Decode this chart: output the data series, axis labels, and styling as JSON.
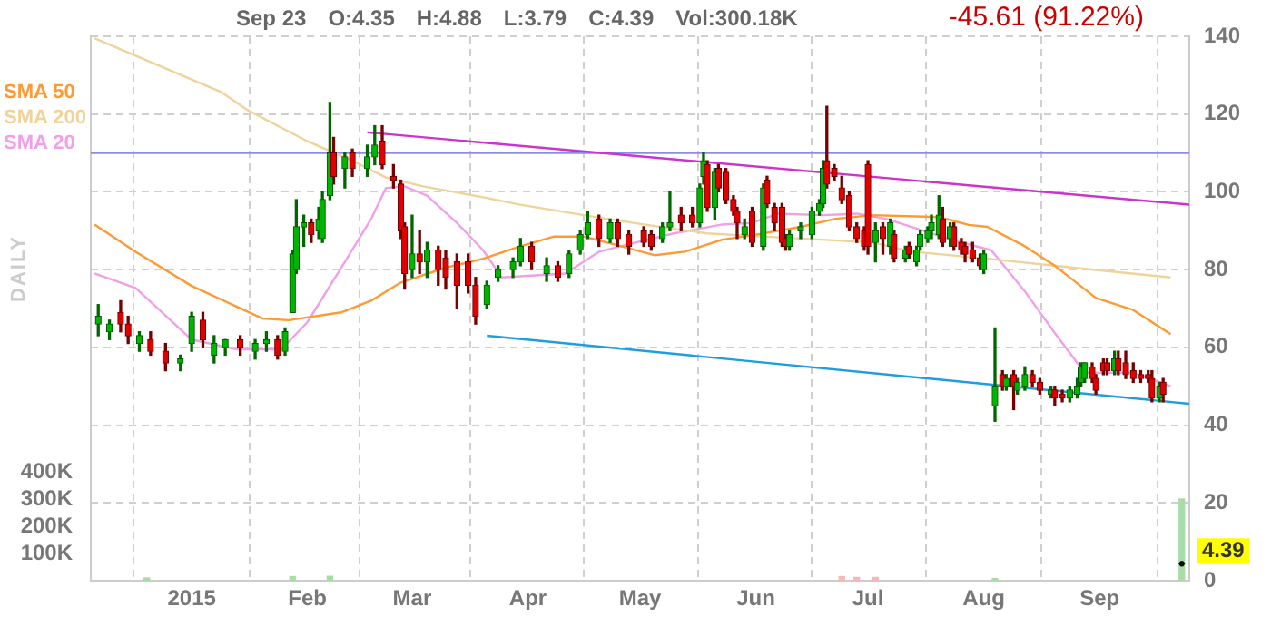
{
  "chart_data": {
    "type": "candlestick",
    "y2label": "DAILY",
    "x": [
      "2014-12-07",
      "2014-12-10",
      "2014-12-13",
      "2014-12-15",
      "2014-12-18",
      "2014-12-21",
      "2014-12-25",
      "2014-12-29",
      "2015-01-01",
      "2015-01-04",
      "2015-01-07",
      "2015-01-10",
      "2015-01-14",
      "2015-01-18",
      "2015-01-21",
      "2015-01-24",
      "2015-01-26",
      "2015-01-28",
      "2015-01-29",
      "2015-01-31",
      "2015-02-02",
      "2015-02-04",
      "2015-02-05",
      "2015-02-07",
      "2015-02-08",
      "2015-02-11",
      "2015-02-13",
      "2015-02-17",
      "2015-02-19",
      "2015-02-21",
      "2015-02-24",
      "2015-02-26",
      "2015-02-27",
      "2015-03-01",
      "2015-03-03",
      "2015-03-05",
      "2015-03-08",
      "2015-03-10",
      "2015-03-13",
      "2015-03-16",
      "2015-03-18",
      "2015-03-21",
      "2015-03-24",
      "2015-03-28",
      "2015-03-30",
      "2015-04-02",
      "2015-04-06",
      "2015-04-09",
      "2015-04-12",
      "2015-04-15",
      "2015-04-17",
      "2015-04-20",
      "2015-04-23",
      "2015-04-25",
      "2015-04-28",
      "2015-05-02",
      "2015-05-04",
      "2015-05-07",
      "2015-05-09",
      "2015-05-12",
      "2015-05-15",
      "2015-05-17",
      "2015-05-18",
      "2015-05-19",
      "2015-05-21",
      "2015-05-22",
      "2015-05-24",
      "2015-05-26",
      "2015-05-27",
      "2015-05-29",
      "2015-05-31",
      "2015-06-03",
      "2015-06-04",
      "2015-06-06",
      "2015-06-08",
      "2015-06-09",
      "2015-06-10",
      "2015-06-13",
      "2015-06-16",
      "2015-06-18",
      "2015-06-19",
      "2015-06-20",
      "2015-06-22",
      "2015-06-24",
      "2015-06-26",
      "2015-06-28",
      "2015-06-30",
      "2015-07-01",
      "2015-07-03",
      "2015-07-05",
      "2015-07-07",
      "2015-07-08",
      "2015-07-11",
      "2015-07-12",
      "2015-07-14",
      "2015-07-15",
      "2015-07-17",
      "2015-07-18",
      "2015-07-20",
      "2015-07-21",
      "2015-07-23",
      "2015-07-24",
      "2015-07-26",
      "2015-07-27",
      "2015-07-29",
      "2015-07-31",
      "2015-08-01",
      "2015-08-04",
      "2015-08-06",
      "2015-08-07",
      "2015-08-09",
      "2015-08-10",
      "2015-08-12",
      "2015-08-14",
      "2015-08-16",
      "2015-08-19",
      "2015-08-20",
      "2015-08-22",
      "2015-08-24",
      "2015-08-26",
      "2015-08-27",
      "2015-08-28",
      "2015-08-30",
      "2015-08-31",
      "2015-09-02",
      "2015-09-03",
      "2015-09-05",
      "2015-09-06",
      "2015-09-08",
      "2015-09-10",
      "2015-09-12",
      "2015-09-14",
      "2015-09-15",
      "2015-09-17",
      "2015-09-18",
      "2015-09-23"
    ],
    "ohlc": [
      [
        66,
        71,
        63,
        68
      ],
      [
        64,
        67,
        62,
        66
      ],
      [
        69,
        72,
        64,
        66
      ],
      [
        66,
        68,
        61,
        63
      ],
      [
        61,
        64,
        59,
        63
      ],
      [
        62,
        64,
        58,
        59
      ],
      [
        59,
        61,
        54,
        56
      ],
      [
        56,
        58,
        54,
        57
      ],
      [
        61,
        69,
        59,
        68
      ],
      [
        67,
        69,
        60,
        62
      ],
      [
        58,
        63,
        56,
        61
      ],
      [
        60,
        62,
        58,
        62
      ],
      [
        62,
        63,
        58,
        60
      ],
      [
        59,
        62,
        57,
        61
      ],
      [
        61,
        64,
        59,
        62
      ],
      [
        62,
        63,
        57,
        58
      ],
      [
        59,
        65,
        58,
        64
      ],
      [
        69,
        85,
        69,
        84
      ],
      [
        80,
        98,
        79,
        91
      ],
      [
        91,
        94,
        86,
        92
      ],
      [
        92,
        93,
        87,
        89
      ],
      [
        90,
        96,
        88,
        93
      ],
      [
        88,
        100,
        87,
        98
      ],
      [
        99,
        123,
        98,
        110
      ],
      [
        110,
        114,
        102,
        104
      ],
      [
        106,
        110,
        101,
        109
      ],
      [
        110,
        111,
        104,
        106
      ],
      [
        106,
        112,
        104,
        109
      ],
      [
        109,
        117,
        107,
        112
      ],
      [
        113,
        117,
        106,
        107
      ],
      [
        104,
        107,
        101,
        103
      ],
      [
        102,
        103,
        88,
        90
      ],
      [
        91,
        92,
        75,
        79
      ],
      [
        80,
        94,
        78,
        84
      ],
      [
        84,
        90,
        79,
        82
      ],
      [
        82,
        87,
        78,
        85
      ],
      [
        85,
        86,
        76,
        80
      ],
      [
        83,
        85,
        75,
        78
      ],
      [
        82,
        84,
        70,
        76
      ],
      [
        82,
        84,
        74,
        76
      ],
      [
        76,
        78,
        66,
        68
      ],
      [
        71,
        77,
        70,
        76
      ],
      [
        78,
        81,
        77,
        80
      ],
      [
        80,
        83,
        78,
        82
      ],
      [
        82,
        88,
        81,
        86
      ],
      [
        86,
        87,
        80,
        82
      ],
      [
        79,
        83,
        77,
        81
      ],
      [
        81,
        82,
        77,
        78
      ],
      [
        79,
        85,
        78,
        84
      ],
      [
        85,
        90,
        84,
        89
      ],
      [
        89,
        95,
        88,
        92
      ],
      [
        93,
        94,
        86,
        88
      ],
      [
        88,
        93,
        87,
        92
      ],
      [
        92,
        93,
        86,
        88
      ],
      [
        89,
        90,
        84,
        86
      ],
      [
        90,
        91,
        86,
        87
      ],
      [
        89,
        90,
        85,
        86
      ],
      [
        88,
        92,
        87,
        91
      ],
      [
        91,
        100,
        90,
        92
      ],
      [
        94,
        96,
        90,
        92
      ],
      [
        94,
        96,
        91,
        92
      ],
      [
        92,
        102,
        91,
        101
      ],
      [
        104,
        110,
        102,
        108
      ],
      [
        107,
        108,
        95,
        96
      ],
      [
        96,
        106,
        93,
        105
      ],
      [
        106,
        107,
        100,
        101
      ],
      [
        105,
        106,
        97,
        98
      ],
      [
        98,
        99,
        94,
        95
      ],
      [
        95,
        96,
        88,
        92
      ],
      [
        89,
        93,
        88,
        91
      ],
      [
        95,
        96,
        86,
        87
      ],
      [
        86,
        102,
        85,
        101
      ],
      [
        103,
        104,
        96,
        97
      ],
      [
        96,
        97,
        90,
        92
      ],
      [
        96,
        97,
        86,
        87
      ],
      [
        88,
        89,
        85,
        86
      ],
      [
        86,
        90,
        85,
        89
      ],
      [
        90,
        92,
        88,
        91
      ],
      [
        89,
        96,
        88,
        95
      ],
      [
        95,
        98,
        94,
        97
      ],
      [
        97,
        108,
        96,
        106
      ],
      [
        108,
        122,
        101,
        102
      ],
      [
        106,
        107,
        103,
        104
      ],
      [
        101,
        104,
        97,
        98
      ],
      [
        99,
        100,
        90,
        91
      ],
      [
        91,
        92,
        87,
        88
      ],
      [
        90,
        91,
        85,
        86
      ],
      [
        107,
        108,
        84,
        86
      ],
      [
        87,
        92,
        82,
        90
      ],
      [
        91,
        92,
        84,
        88
      ],
      [
        86,
        93,
        84,
        92
      ],
      [
        89,
        90,
        82,
        83
      ],
      [
        83,
        86,
        82,
        85
      ],
      [
        86,
        87,
        83,
        84
      ],
      [
        82,
        86,
        81,
        85
      ],
      [
        86,
        90,
        85,
        89
      ],
      [
        88,
        91,
        87,
        90
      ],
      [
        90,
        94,
        88,
        92
      ],
      [
        89,
        99,
        88,
        94
      ],
      [
        93,
        96,
        86,
        87
      ],
      [
        88,
        92,
        86,
        91
      ],
      [
        91,
        92,
        85,
        86
      ],
      [
        87,
        88,
        84,
        85
      ],
      [
        86,
        87,
        82,
        84
      ],
      [
        85,
        87,
        82,
        83
      ],
      [
        83,
        84,
        80,
        81
      ],
      [
        80,
        85,
        79,
        84
      ],
      [
        45,
        65,
        41,
        50
      ],
      [
        53,
        54,
        49,
        50
      ],
      [
        50,
        53,
        49,
        52
      ],
      [
        53,
        54,
        44,
        50
      ],
      [
        49,
        52,
        48,
        51
      ],
      [
        50,
        55,
        49,
        53
      ],
      [
        53,
        54,
        50,
        51
      ],
      [
        51,
        52,
        48,
        49
      ],
      [
        48,
        50,
        47,
        49
      ],
      [
        49,
        50,
        45,
        47
      ],
      [
        48,
        49,
        46,
        47
      ],
      [
        47,
        50,
        46,
        49
      ],
      [
        48,
        52,
        47,
        50
      ],
      [
        51,
        56,
        50,
        55
      ],
      [
        52,
        56,
        51,
        56
      ],
      [
        55,
        56,
        51,
        52
      ],
      [
        52,
        53,
        48,
        49
      ],
      [
        56,
        57,
        53,
        54
      ],
      [
        56,
        57,
        53,
        54
      ],
      [
        54,
        59,
        53,
        57
      ],
      [
        57,
        59,
        53,
        54
      ],
      [
        56,
        59,
        52,
        53
      ],
      [
        54,
        56,
        51,
        52
      ],
      [
        53,
        54,
        51,
        52
      ],
      [
        53,
        54,
        51,
        52
      ],
      [
        52,
        54,
        46,
        47
      ],
      [
        47,
        51,
        46,
        50
      ],
      [
        51,
        52,
        46,
        48
      ],
      [
        4.35,
        4.88,
        3.79,
        4.39
      ]
    ],
    "series": [
      {
        "name": "SMA 50",
        "type": "line",
        "color": "#ff9933",
        "x": [
          "2014-12-06",
          "2014-12-17",
          "2015-01-01",
          "2015-01-20",
          "2015-01-27",
          "2015-02-10",
          "2015-02-18",
          "2015-02-26",
          "2015-03-10",
          "2015-03-20",
          "2015-03-30",
          "2015-04-08",
          "2015-04-16",
          "2015-04-26",
          "2015-05-05",
          "2015-05-13",
          "2015-05-23",
          "2015-06-01",
          "2015-06-13",
          "2015-06-22",
          "2015-07-02",
          "2015-07-20",
          "2015-07-28",
          "2015-08-02",
          "2015-08-12",
          "2015-08-20",
          "2015-08-31",
          "2015-09-10",
          "2015-09-20"
        ],
        "values": [
          91.6,
          84.6,
          75.8,
          67.4,
          67,
          69,
          72,
          76.7,
          80.5,
          82.8,
          86,
          88.5,
          88.5,
          86,
          83.7,
          84.6,
          87.7,
          89,
          91,
          93,
          94,
          93.5,
          91.5,
          91,
          86,
          81,
          72.7,
          69.6,
          63.4
        ]
      },
      {
        "name": "SMA 200",
        "type": "line",
        "color": "#eed39a",
        "x": [
          "2014-12-06",
          "2015-01-09",
          "2015-01-16",
          "2015-02-01",
          "2015-02-13",
          "2015-02-22",
          "2015-03-04",
          "2015-03-20",
          "2015-03-30",
          "2015-04-16",
          "2015-05-02",
          "2015-05-19",
          "2015-06-05",
          "2015-07-02",
          "2015-07-13",
          "2015-08-02",
          "2015-08-25",
          "2015-09-20"
        ],
        "values": [
          139.5,
          125.6,
          121,
          113,
          108,
          103.7,
          101.4,
          98.6,
          96.7,
          94,
          91.6,
          89.3,
          88.4,
          87,
          84.6,
          82.8,
          80.5,
          78
        ]
      },
      {
        "name": "SMA 20",
        "type": "line",
        "color": "#f0a0e8",
        "x": [
          "2014-12-06",
          "2014-12-17",
          "2015-01-01",
          "2015-01-13",
          "2015-01-25",
          "2015-02-01",
          "2015-02-11",
          "2015-02-18",
          "2015-02-22",
          "2015-02-27",
          "2015-03-05",
          "2015-03-13",
          "2015-03-20",
          "2015-03-25",
          "2015-04-11",
          "2015-04-20",
          "2015-04-30",
          "2015-05-10",
          "2015-05-23",
          "2015-05-31",
          "2015-06-07",
          "2015-06-19",
          "2015-06-28",
          "2015-07-06",
          "2015-07-24",
          "2015-08-03",
          "2015-08-12",
          "2015-08-20",
          "2015-08-28",
          "2015-09-10",
          "2015-09-20"
        ],
        "values": [
          79,
          75.3,
          62,
          59.5,
          59.5,
          66.5,
          82,
          93,
          101,
          101.4,
          99,
          92,
          85,
          78,
          79,
          84.6,
          87,
          89.3,
          91.6,
          92,
          94.4,
          94,
          94.4,
          93,
          87.5,
          85,
          74.4,
          63.7,
          53.5,
          53.5,
          50
        ]
      },
      {
        "type": "line",
        "color": "#cc33cc",
        "x": [
          "2015-02-17",
          "2015-09-25"
        ],
        "values": [
          115.3,
          96.7
        ]
      },
      {
        "type": "line",
        "color": "#1e9ee0",
        "x": [
          "2015-03-21",
          "2015-09-25"
        ],
        "values": [
          63,
          45.5
        ]
      },
      {
        "type": "bar",
        "axis": "y2",
        "x": [
          "2014-12-20",
          "2015-01-28",
          "2015-02-07",
          "2015-02-24",
          "2015-05-20",
          "2015-06-03",
          "2015-06-24",
          "2015-06-28",
          "2015-07-03",
          "2015-08-04",
          "2015-09-23"
        ],
        "values": [
          10000,
          15000,
          16000,
          null,
          null,
          null,
          15000,
          12000,
          12000,
          8000,
          300000
        ],
        "colors": [
          "#a8dca8",
          "#a8dca8",
          "#a8dca8",
          "#f4b8b8",
          "#a8dca8",
          "#a8dca8",
          "#f4b8b8",
          "#f4b8b8",
          "#f4b8b8",
          "#a8dca8",
          "#a8dca8"
        ]
      }
    ],
    "ref_lines": [
      {
        "axis": "y",
        "value": 110,
        "color": "#8c8cee"
      }
    ],
    "xlim": [
      "2014-12-05",
      "2015-09-25"
    ],
    "xticks": [
      {
        "value": "2015-01-01",
        "label": "2015"
      },
      {
        "value": "2015-02-01",
        "label": "Feb"
      },
      {
        "value": "2015-03-01",
        "label": "Mar"
      },
      {
        "value": "2015-04-01",
        "label": "Apr"
      },
      {
        "value": "2015-05-01",
        "label": "May"
      },
      {
        "value": "2015-06-01",
        "label": "Jun"
      },
      {
        "value": "2015-07-01",
        "label": "Jul"
      },
      {
        "value": "2015-08-01",
        "label": "Aug"
      },
      {
        "value": "2015-09-01",
        "label": "Sep"
      }
    ],
    "ylim": [
      0,
      140
    ],
    "yticks": [
      0,
      20,
      40,
      60,
      80,
      100,
      120,
      140
    ],
    "y2lim": [
      0,
      2000000
    ],
    "y2ticks": [
      {
        "value": 100000,
        "label": "100K"
      },
      {
        "value": 200000,
        "label": "200K"
      },
      {
        "value": 300000,
        "label": "300K"
      },
      {
        "value": 400000,
        "label": "400K"
      }
    ],
    "grid": true,
    "legend": "top left",
    "annotations": [
      "Sep 23",
      "O:4.35",
      "H:4.88",
      "L:3.79",
      "C:4.39",
      "Vol:300.18K",
      "-45.61 (91.22%)",
      {
        "text": "4.39",
        "x": "2015-09-23",
        "y": 4.39
      }
    ]
  }
}
